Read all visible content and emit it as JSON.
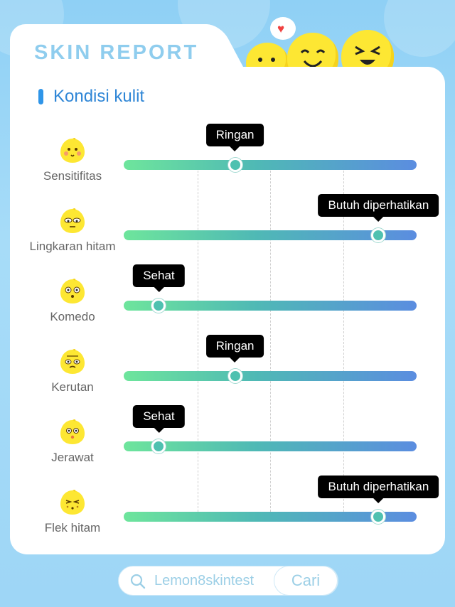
{
  "header": {
    "title": "SKIN REPORT"
  },
  "section": {
    "title": "Kondisi kulit"
  },
  "rows": [
    {
      "label": "Sensitifitas",
      "status": "Ringan",
      "level": 0.38,
      "icon": "blush-lemon-icon"
    },
    {
      "label": "Lingkaran hitam",
      "status": "Butuh diperhatikan",
      "level": 0.87,
      "icon": "tired-lemon-icon"
    },
    {
      "label": "Komedo",
      "status": "Sehat",
      "level": 0.12,
      "icon": "dotted-lemon-icon"
    },
    {
      "label": "Kerutan",
      "status": "Ringan",
      "level": 0.38,
      "icon": "wrinkled-lemon-icon"
    },
    {
      "label": "Jerawat",
      "status": "Sehat",
      "level": 0.12,
      "icon": "pimple-lemon-icon"
    },
    {
      "label": "Flek hitam",
      "status": "Butuh diperhatikan",
      "level": 0.87,
      "icon": "spotted-lemon-icon"
    }
  ],
  "search": {
    "value": "Lemon8skintest",
    "button_label": "Cari"
  },
  "colors": {
    "accent": "#2f86d6",
    "title": "#8fcdee",
    "lemon": "#fde733"
  }
}
